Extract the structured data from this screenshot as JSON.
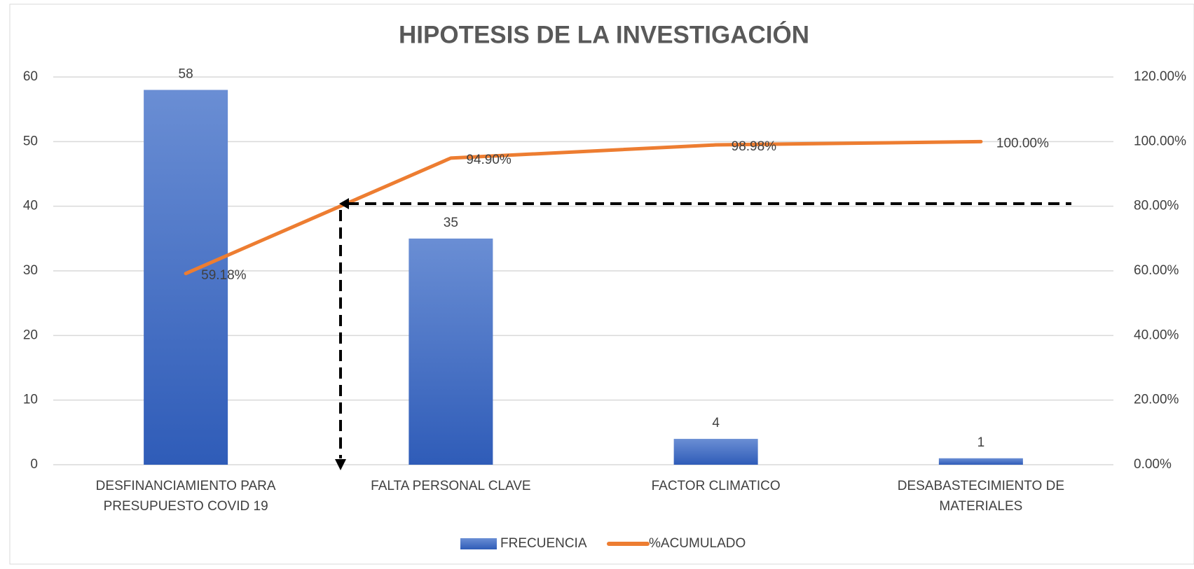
{
  "chart_data": {
    "type": "bar",
    "title": "HIPOTESIS DE LA INVESTIGACIÓN",
    "categories": [
      "DESFINANCIAMIENTO PARA PRESUPUESTO COVID 19",
      "FALTA PERSONAL CLAVE",
      "FACTOR CLIMATICO",
      "DESABASTECIMIENTO DE MATERIALES"
    ],
    "series": [
      {
        "name": "FRECUENCIA",
        "type": "bar",
        "color": "#4472c4",
        "values": [
          58,
          35,
          4,
          1
        ]
      },
      {
        "name": "%ACUMULADO",
        "type": "line",
        "color": "#ed7d31",
        "axis": "y2",
        "values": [
          59.18,
          94.9,
          98.98,
          100.0
        ],
        "value_labels": [
          "59.18%",
          "94.90%",
          "98.98%",
          "100.00%"
        ]
      }
    ],
    "ylim": [
      0,
      60
    ],
    "yticks": [
      0,
      10,
      20,
      30,
      40,
      50,
      60
    ],
    "y2lim": [
      0,
      120
    ],
    "y2ticks": [
      {
        "value": 0,
        "label": "0.00%"
      },
      {
        "value": 20,
        "label": "20.00%"
      },
      {
        "value": 40,
        "label": "40.00%"
      },
      {
        "value": 60,
        "label": "60.00%"
      },
      {
        "value": 80,
        "label": "80.00%"
      },
      {
        "value": 100,
        "label": "100.00%"
      },
      {
        "value": 120,
        "label": "120.00%"
      }
    ],
    "grid": true,
    "legend": "bottom"
  }
}
